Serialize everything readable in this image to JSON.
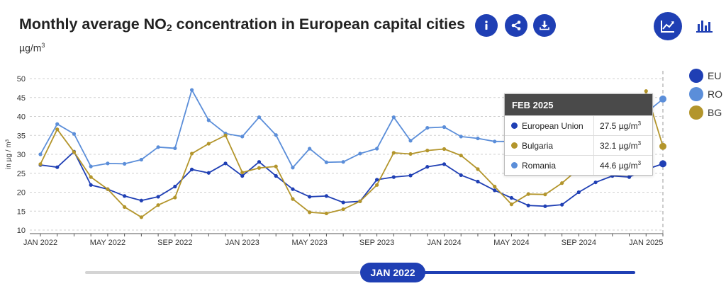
{
  "header": {
    "title_main": "Monthly average NO",
    "title_sub": "2",
    "title_rest": " concentration in European capital cities",
    "unit_base": "µg/m",
    "unit_sup": "3"
  },
  "buttons": {
    "info_icon": "info-icon",
    "share_icon": "share-icon",
    "download_icon": "download-icon",
    "line_view_icon": "line-chart-icon",
    "bar_view_icon": "bar-chart-icon"
  },
  "colors": {
    "EU": "#1f3fb4",
    "RO": "#5b8ed9",
    "BG": "#b3952b"
  },
  "tooltip": {
    "title": "FEB 2025",
    "unit_base": "µg/m",
    "unit_sup": "3",
    "rows": [
      {
        "name": "European Union",
        "value": "27.5",
        "key": "EU"
      },
      {
        "name": "Bulgaria",
        "value": "32.1",
        "key": "BG"
      },
      {
        "name": "Romania",
        "value": "44.6",
        "key": "RO"
      }
    ]
  },
  "slider": {
    "label": "JAN 2022"
  },
  "chart_data": {
    "type": "line",
    "ylabel": "in µg / m³",
    "ylim": [
      10,
      50
    ],
    "yticks": [
      10,
      15,
      20,
      25,
      30,
      35,
      40,
      45,
      50
    ],
    "x_tick_labels": [
      {
        "index": 0,
        "label": "JAN 2022"
      },
      {
        "index": 4,
        "label": "MAY 2022"
      },
      {
        "index": 8,
        "label": "SEP 2022"
      },
      {
        "index": 12,
        "label": "JAN 2023"
      },
      {
        "index": 16,
        "label": "MAY 2023"
      },
      {
        "index": 20,
        "label": "SEP 2023"
      },
      {
        "index": 24,
        "label": "JAN 2024"
      },
      {
        "index": 28,
        "label": "MAY 2024"
      },
      {
        "index": 32,
        "label": "SEP 2024"
      },
      {
        "index": 36,
        "label": "JAN 2025"
      }
    ],
    "x_count": 38,
    "grid": true,
    "legend_placement": "right",
    "highlight_index": 37,
    "series": [
      {
        "name": "EU",
        "key": "EU",
        "values": [
          27.2,
          26.6,
          30.7,
          21.9,
          20.8,
          19.0,
          17.8,
          18.8,
          21.5,
          26.0,
          25.1,
          27.6,
          24.3,
          28.0,
          24.3,
          20.8,
          18.8,
          19.0,
          17.3,
          17.6,
          23.3,
          24.0,
          24.4,
          26.7,
          27.4,
          24.5,
          22.8,
          20.5,
          18.5,
          16.5,
          16.3,
          16.7,
          20.0,
          22.6,
          24.3,
          24.0,
          26.0,
          27.5
        ]
      },
      {
        "name": "RO",
        "key": "RO",
        "values": [
          30.0,
          38.0,
          35.4,
          26.8,
          27.6,
          27.5,
          28.6,
          31.9,
          31.6,
          47.0,
          39.0,
          35.5,
          34.7,
          39.8,
          35.1,
          26.5,
          31.5,
          27.9,
          28.0,
          30.2,
          31.5,
          39.8,
          33.6,
          37.0,
          37.2,
          34.7,
          34.2,
          33.4,
          33.4,
          33.4,
          33.3,
          33.4,
          33.6,
          33.5,
          33.5,
          33.9,
          41.0,
          44.6
        ]
      },
      {
        "name": "BG",
        "key": "BG",
        "values": [
          27.4,
          36.6,
          30.6,
          24.0,
          20.8,
          16.1,
          13.4,
          16.6,
          18.6,
          30.2,
          32.8,
          35.0,
          25.2,
          26.4,
          26.8,
          18.2,
          14.7,
          14.4,
          15.5,
          17.6,
          21.9,
          30.4,
          30.1,
          31.0,
          31.4,
          29.7,
          26.1,
          21.5,
          16.8,
          19.5,
          19.4,
          22.4,
          26.2,
          28.5,
          29.8,
          30.2,
          46.7,
          32.1
        ]
      }
    ]
  }
}
